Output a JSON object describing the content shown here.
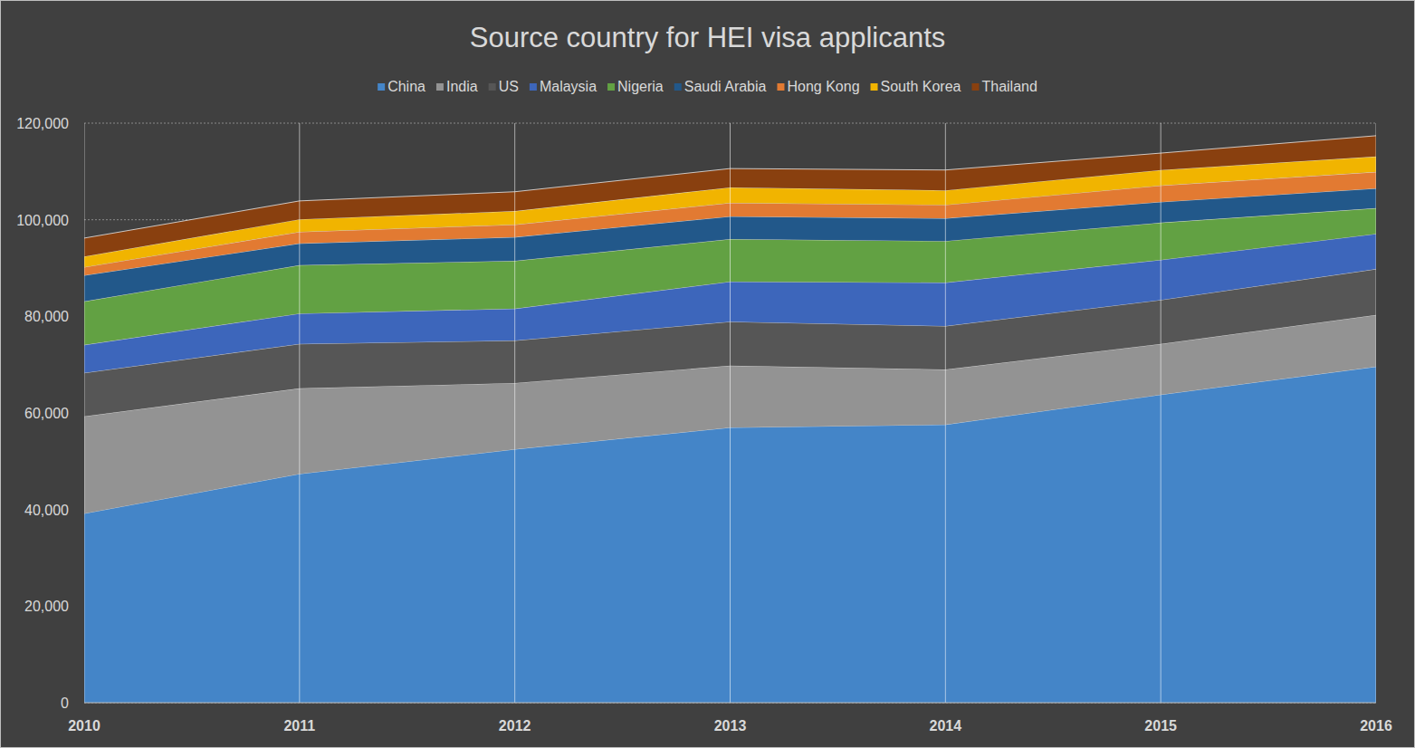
{
  "chart_data": {
    "type": "area",
    "title": "Source country for HEI visa applicants",
    "stacked": true,
    "grid": true,
    "legend": "top",
    "categories": [
      "2010",
      "2011",
      "2012",
      "2013",
      "2014",
      "2015",
      "2016"
    ],
    "ylim": [
      0,
      120000
    ],
    "yticks": [
      0,
      {
        "value": 20000,
        "label": "20,000"
      },
      {
        "value": 40000,
        "label": "40,000"
      },
      {
        "value": 60000,
        "label": "60,000"
      },
      {
        "value": 80000,
        "label": "80,000"
      },
      {
        "value": 100000,
        "label": "100,000"
      },
      {
        "value": 120000,
        "label": "120,000"
      }
    ],
    "series": [
      {
        "name": "China",
        "color": "#4485c8",
        "values": [
          39200,
          47400,
          52500,
          57000,
          57600,
          63800,
          69600
        ]
      },
      {
        "name": "India",
        "color": "#939393",
        "values": [
          20100,
          17700,
          13700,
          12800,
          11400,
          10500,
          10700
        ]
      },
      {
        "name": "US",
        "color": "#565656",
        "values": [
          9000,
          9200,
          8800,
          9100,
          9000,
          9100,
          9500
        ]
      },
      {
        "name": "Malaysia",
        "color": "#3d66bb",
        "values": [
          5800,
          6300,
          6600,
          8300,
          9000,
          8300,
          7300
        ]
      },
      {
        "name": "Nigeria",
        "color": "#62a143",
        "values": [
          9000,
          10000,
          9900,
          8800,
          8600,
          7700,
          5300
        ]
      },
      {
        "name": "Saudi Arabia",
        "color": "#22588a",
        "values": [
          5400,
          4500,
          4900,
          4700,
          4700,
          4300,
          4100
        ]
      },
      {
        "name": "Hong Kong",
        "color": "#e27a32",
        "values": [
          1700,
          2400,
          2600,
          2800,
          2800,
          3400,
          3400
        ]
      },
      {
        "name": "South Korea",
        "color": "#f1b400",
        "values": [
          2200,
          2600,
          2800,
          3200,
          3000,
          3200,
          3200
        ]
      },
      {
        "name": "Thailand",
        "color": "#89400f",
        "values": [
          3800,
          3800,
          4000,
          3900,
          4200,
          3500,
          4300
        ]
      }
    ]
  }
}
